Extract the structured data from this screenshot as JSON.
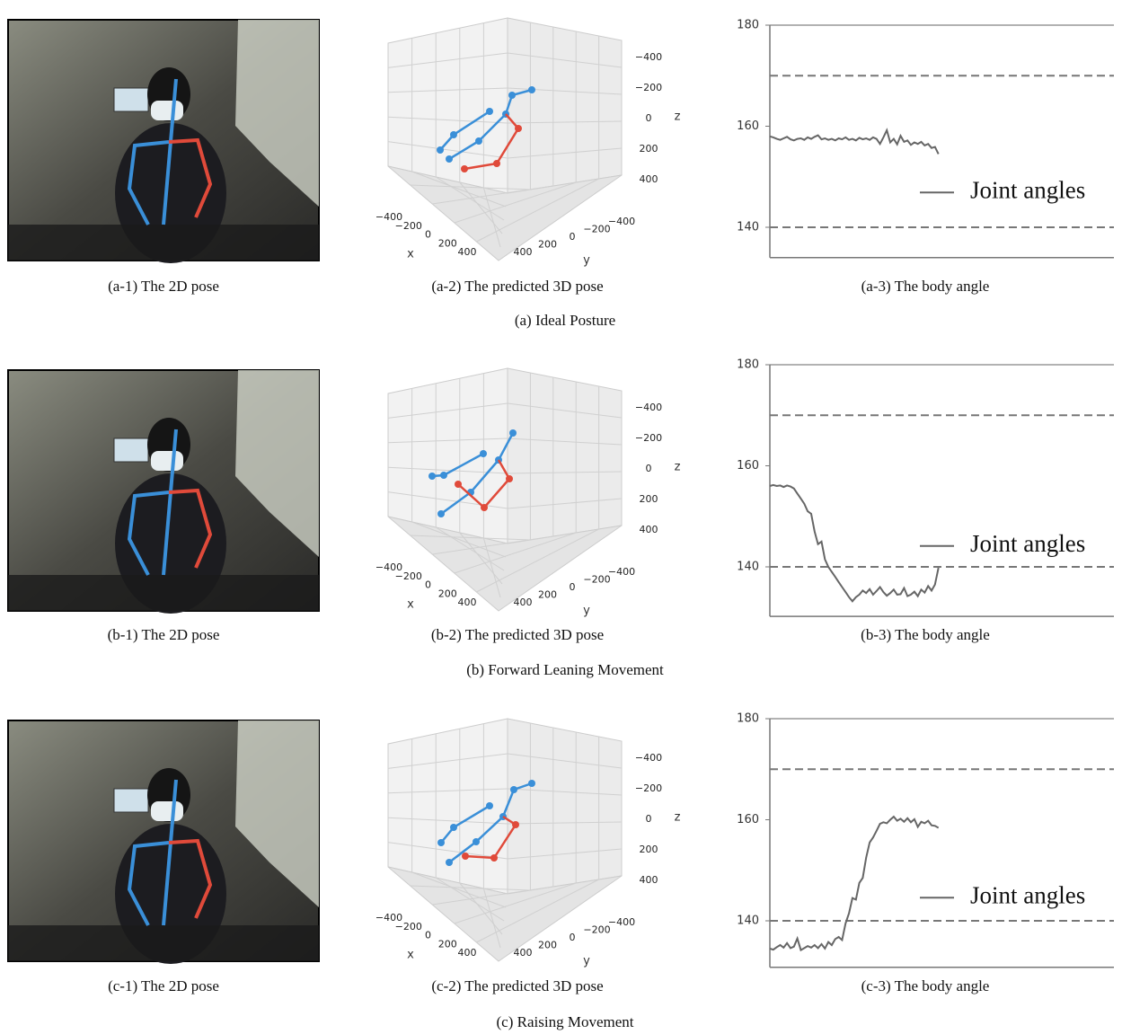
{
  "figure": {
    "rows": [
      {
        "caption": "(a) Ideal Posture",
        "photo_caption": "(a-1) The 2D pose",
        "pose_caption": "(a-2) The predicted 3D pose",
        "chart_caption": "(a-3) The body angle",
        "pose3d": {
          "xlabel": "x",
          "ylabel": "y",
          "zlabel": "z",
          "xticks": [
            {
              "value": -400,
              "label": "−400"
            },
            {
              "value": -200,
              "label": "−200"
            },
            0,
            200,
            400
          ],
          "yticks": [
            400,
            200,
            0,
            {
              "value": -200,
              "label": "−200"
            },
            {
              "value": -400,
              "label": "−400"
            }
          ],
          "zticks": [
            {
              "value": -400,
              "label": "−400"
            },
            {
              "value": -200,
              "label": "−200"
            },
            0,
            200,
            400
          ]
        }
      },
      {
        "caption": "(b) Forward Leaning Movement",
        "photo_caption": "(b-1) The 2D pose",
        "pose_caption": "(b-2) The predicted 3D pose",
        "chart_caption": "(b-3) The body angle",
        "pose3d": {
          "xlabel": "x",
          "ylabel": "y",
          "zlabel": "z",
          "xticks": [
            {
              "value": -400,
              "label": "−400"
            },
            {
              "value": -200,
              "label": "−200"
            },
            0,
            200,
            400
          ],
          "yticks": [
            400,
            200,
            0,
            {
              "value": -200,
              "label": "−200"
            },
            {
              "value": -400,
              "label": "−400"
            }
          ],
          "zticks": [
            {
              "value": -400,
              "label": "−400"
            },
            {
              "value": -200,
              "label": "−200"
            },
            0,
            200,
            400
          ]
        }
      },
      {
        "caption": "(c) Raising Movement",
        "photo_caption": "(c-1) The 2D pose",
        "pose_caption": "(c-2) The predicted 3D pose",
        "chart_caption": "(c-3) The body angle",
        "pose3d": {
          "xlabel": "x",
          "ylabel": "y",
          "zlabel": "z",
          "xticks": [
            {
              "value": -400,
              "label": "−400"
            },
            {
              "value": -200,
              "label": "−200"
            },
            0,
            200,
            400
          ],
          "yticks": [
            400,
            200,
            0,
            {
              "value": -200,
              "label": "−200"
            },
            {
              "value": -400,
              "label": "−400"
            }
          ],
          "zticks": [
            {
              "value": -400,
              "label": "−400"
            },
            {
              "value": -200,
              "label": "−200"
            },
            0,
            200,
            400
          ]
        }
      }
    ]
  },
  "chart_data": [
    {
      "type": "line",
      "x": [
        0,
        1,
        2,
        3,
        4,
        5,
        6,
        7,
        8,
        9,
        10,
        11,
        12,
        13,
        14,
        15,
        16,
        17,
        18,
        19,
        20,
        21,
        22,
        23,
        24,
        25,
        26,
        27,
        28,
        29,
        30,
        31,
        32,
        33,
        34,
        35,
        36,
        37,
        38,
        39,
        40,
        41,
        42,
        43,
        44,
        45,
        46,
        47,
        48,
        49
      ],
      "xlim": [
        0,
        100
      ],
      "ylim": [
        134,
        180
      ],
      "yticks": [
        140,
        160,
        180
      ],
      "hlines": [
        170,
        140
      ],
      "legend": "center right",
      "series": [
        {
          "name": "Joint angles",
          "color": "#666666",
          "values": [
            158,
            157.8,
            157.5,
            157.3,
            157.6,
            157.9,
            157.4,
            157.2,
            157.5,
            157.6,
            157.3,
            157.8,
            157.5,
            157.9,
            158.2,
            157.4,
            157.6,
            157.3,
            157.5,
            157.2,
            157.6,
            157.4,
            157.8,
            157.3,
            157.5,
            157.2,
            157.7,
            157.4,
            157.6,
            157.3,
            157.8,
            157.5,
            156.5,
            157.8,
            159.2,
            156.8,
            157.5,
            156.4,
            158.1,
            156.9,
            157.2,
            156.3,
            156.8,
            156.5,
            156.9,
            156.2,
            156.5,
            155.7,
            155.9,
            154.5
          ]
        }
      ]
    },
    {
      "type": "line",
      "x": [
        0,
        1,
        2,
        3,
        4,
        5,
        6,
        7,
        8,
        9,
        10,
        11,
        12,
        13,
        14,
        15,
        16,
        17,
        18,
        19,
        20,
        21,
        22,
        23,
        24,
        25,
        26,
        27,
        28,
        29,
        30,
        31,
        32,
        33,
        34,
        35,
        36,
        37,
        38,
        39,
        40,
        41,
        42,
        43,
        44,
        45,
        46,
        47,
        48,
        49
      ],
      "xlim": [
        0,
        100
      ],
      "ylim": [
        130.2,
        180
      ],
      "yticks": [
        140,
        160,
        180
      ],
      "hlines": [
        170,
        140
      ],
      "legend": "center right",
      "series": [
        {
          "name": "Joint angles",
          "color": "#666666",
          "values": [
            156,
            156.2,
            156,
            156.1,
            155.8,
            156.1,
            155.9,
            155.5,
            154.5,
            153.5,
            152.5,
            151,
            150.5,
            147,
            144.5,
            145,
            141.5,
            140,
            139,
            138,
            137,
            136,
            135,
            134,
            133.2,
            134,
            134.5,
            135.3,
            134.8,
            135.6,
            134.5,
            135.2,
            136,
            135,
            134.3,
            134.8,
            135.5,
            134.5,
            134.6,
            135.8,
            134.2,
            134.5,
            135.1,
            134.2,
            135.5,
            134.9,
            136.2,
            135.3,
            136.5,
            139.8
          ]
        }
      ]
    },
    {
      "type": "line",
      "x": [
        0,
        1,
        2,
        3,
        4,
        5,
        6,
        7,
        8,
        9,
        10,
        11,
        12,
        13,
        14,
        15,
        16,
        17,
        18,
        19,
        20,
        21,
        22,
        23,
        24,
        25,
        26,
        27,
        28,
        29,
        30,
        31,
        32,
        33,
        34,
        35,
        36,
        37,
        38,
        39,
        40,
        41,
        42,
        43,
        44,
        45,
        46,
        47,
        48,
        49
      ],
      "xlim": [
        0,
        100
      ],
      "ylim": [
        130.8,
        180
      ],
      "yticks": [
        140,
        160,
        180
      ],
      "hlines": [
        170,
        140
      ],
      "legend": "center right",
      "series": [
        {
          "name": "Joint angles",
          "color": "#666666",
          "values": [
            134.5,
            134.3,
            134.8,
            135.2,
            134.7,
            135.6,
            134.6,
            134.9,
            136.5,
            134.2,
            134.6,
            135,
            134.7,
            135.2,
            134.6,
            135.4,
            134.5,
            135.8,
            135.2,
            136.4,
            136.8,
            136.2,
            139.5,
            141.5,
            144.5,
            144.2,
            147.5,
            148.5,
            152.5,
            155.5,
            156.5,
            157.8,
            159.2,
            159.5,
            159.3,
            160,
            160.6,
            159.8,
            160.2,
            159.6,
            160.3,
            159.5,
            160.1,
            158.6,
            159.6,
            159.3,
            159.8,
            158.9,
            158.8,
            158.4
          ]
        }
      ]
    }
  ]
}
